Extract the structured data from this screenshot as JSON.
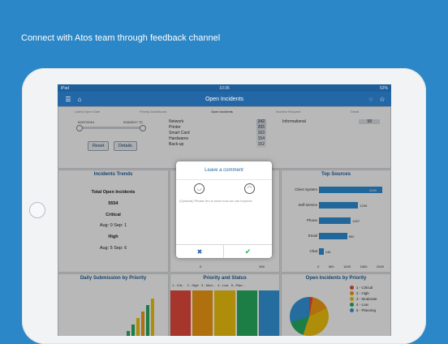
{
  "headline": "Connect with Atos team through feedback channel",
  "status": {
    "carrier": "iPad",
    "time": "10:36",
    "battery": "52%"
  },
  "nav": {
    "title": "Open Incidents"
  },
  "filters": {
    "labels": [
      "Latest Open Date",
      "Priority Dashboard",
      "Open Incidents",
      "Incident Request",
      "Detail"
    ],
    "date_from": "02/07/2014",
    "date_to": "9/16/2017 TC",
    "reset": "Reset",
    "details": "Details",
    "categories": [
      {
        "name": "Network",
        "value": "242"
      },
      {
        "name": "Printer",
        "value": "205"
      },
      {
        "name": "Smart Card",
        "value": "163"
      },
      {
        "name": "Hardwares",
        "value": "154"
      },
      {
        "name": "Back-up",
        "value": "152"
      }
    ],
    "request": "Informational",
    "request_value": "58"
  },
  "trends": {
    "title": "Incidents Trends",
    "total_label": "Total Open Incidents",
    "total": "5554",
    "critical": "Critical",
    "crit_line": "Aug: 0  Sep: 1",
    "high": "High",
    "high_line": "Aug: 5  Sep: 6"
  },
  "sources": {
    "title": "Top Sources",
    "axis": [
      "0",
      "500",
      "1000",
      "1500",
      "2000"
    ]
  },
  "modal": {
    "title": "Leave a comment",
    "placeholder": "(Optional) Please let us know how we can improve.",
    "cancel": "✖",
    "ok": "✔"
  },
  "daily": {
    "title": "Daily Submission by Priority"
  },
  "ps": {
    "title": "Priority and Status",
    "cols": "1 - Crit...   2 - High   3 - Mod...   4 - Low   5 - Plan..."
  },
  "openprio": {
    "title": "Open Incidents by Priority",
    "legend": [
      "1 - Critical",
      "2 - High",
      "3 - Moderate",
      "4 - Low",
      "5 - Planning"
    ]
  },
  "partial_axis": [
    "0",
    "500"
  ],
  "colors": {
    "accent": "#2467a6",
    "bars": "#2f8fd8",
    "critical": "#e74c3c",
    "high": "#f39c12",
    "moderate": "#f1c40f",
    "low": "#27ae60",
    "planning": "#3498db"
  },
  "chart_data": {
    "type": "bar",
    "title": "Top Sources",
    "categories": [
      "Client System",
      "Self-service",
      "Phone",
      "Email",
      "Chat"
    ],
    "values": [
      2400,
      1239,
      1007,
      892,
      146
    ],
    "value_labels": [
      "2400",
      "1239",
      "1007",
      "892",
      "146"
    ],
    "xlim": [
      0,
      2000
    ]
  }
}
